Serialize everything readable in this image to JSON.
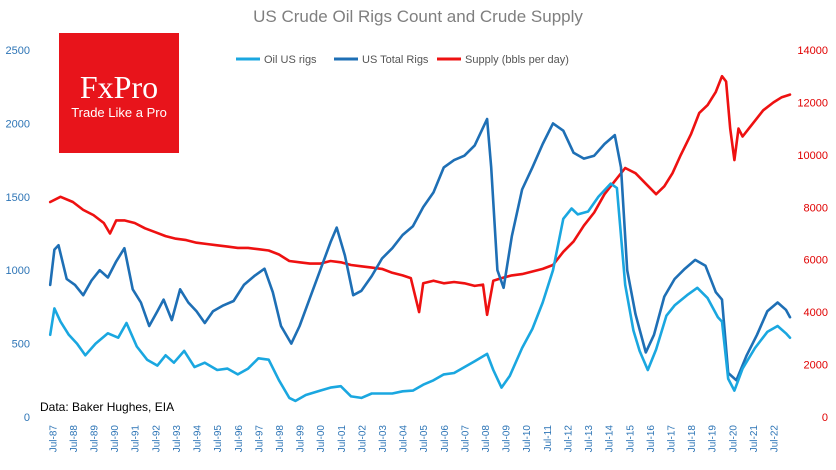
{
  "colors": {
    "oil_rigs": "#1aa7e0",
    "total_rigs": "#1e6fb5",
    "supply": "#ee1111",
    "logo_bg": "#e8141b",
    "left_axis": "#2e75b6",
    "right_axis": "#e00000"
  },
  "logo": {
    "brand": "FxPro",
    "tagline": "Trade Like a Pro"
  },
  "chart_data": {
    "type": "line",
    "title": "US Crude Oil Rigs Count and Crude Supply",
    "source_note": "Data: Baker Hughes, EIA",
    "legend_position": "top-center",
    "x_labels": [
      "Jul-87",
      "Jul-88",
      "Jul-89",
      "Jul-90",
      "Jul-91",
      "Jul-92",
      "Jul-93",
      "Jul-94",
      "Jul-95",
      "Jul-96",
      "Jul-97",
      "Jul-98",
      "Jul-99",
      "Jul-00",
      "Jul-01",
      "Jul-02",
      "Jul-03",
      "Jul-04",
      "Jul-05",
      "Jul-06",
      "Jul-07",
      "Jul-08",
      "Jul-09",
      "Jul-10",
      "Jul-11",
      "Jul-12",
      "Jul-13",
      "Jul-14",
      "Jul-15",
      "Jul-16",
      "Jul-17",
      "Jul-18",
      "Jul-19",
      "Jul-20",
      "Jul-21",
      "Jul-22"
    ],
    "x_range": [
      1987.0,
      2023.3
    ],
    "y_left": {
      "range": [
        0,
        2500
      ],
      "ticks": [
        "0",
        "500",
        "1000",
        "1500",
        "2000",
        "2500"
      ]
    },
    "y_right": {
      "range": [
        0,
        14000
      ],
      "ticks": [
        "0",
        "2000",
        "4000",
        "6000",
        "8000",
        "10000",
        "12000",
        "14000"
      ]
    },
    "series": [
      {
        "name": "Oil US rigs",
        "axis": "left",
        "color_key": "oil_rigs",
        "points": [
          [
            1987.4,
            560
          ],
          [
            1987.6,
            740
          ],
          [
            1987.9,
            650
          ],
          [
            1988.3,
            560
          ],
          [
            1988.7,
            500
          ],
          [
            1989.1,
            420
          ],
          [
            1989.6,
            500
          ],
          [
            1990.2,
            570
          ],
          [
            1990.7,
            540
          ],
          [
            1991.1,
            640
          ],
          [
            1991.6,
            480
          ],
          [
            1992.1,
            390
          ],
          [
            1992.6,
            350
          ],
          [
            1993.0,
            420
          ],
          [
            1993.4,
            370
          ],
          [
            1993.9,
            450
          ],
          [
            1994.4,
            340
          ],
          [
            1994.9,
            370
          ],
          [
            1995.5,
            320
          ],
          [
            1996.0,
            330
          ],
          [
            1996.5,
            290
          ],
          [
            1997.0,
            330
          ],
          [
            1997.5,
            400
          ],
          [
            1998.0,
            390
          ],
          [
            1998.5,
            250
          ],
          [
            1999.0,
            130
          ],
          [
            1999.3,
            110
          ],
          [
            1999.8,
            150
          ],
          [
            2000.5,
            180
          ],
          [
            2001.0,
            200
          ],
          [
            2001.5,
            210
          ],
          [
            2002.0,
            140
          ],
          [
            2002.5,
            130
          ],
          [
            2003.0,
            160
          ],
          [
            2003.5,
            160
          ],
          [
            2004.0,
            160
          ],
          [
            2004.5,
            175
          ],
          [
            2005.0,
            180
          ],
          [
            2005.5,
            220
          ],
          [
            2006.0,
            250
          ],
          [
            2006.5,
            290
          ],
          [
            2007.0,
            300
          ],
          [
            2007.5,
            340
          ],
          [
            2008.0,
            380
          ],
          [
            2008.6,
            430
          ],
          [
            2008.9,
            320
          ],
          [
            2009.3,
            200
          ],
          [
            2009.7,
            280
          ],
          [
            2010.3,
            470
          ],
          [
            2010.8,
            600
          ],
          [
            2011.3,
            780
          ],
          [
            2011.8,
            1000
          ],
          [
            2012.3,
            1350
          ],
          [
            2012.7,
            1420
          ],
          [
            2013.0,
            1380
          ],
          [
            2013.5,
            1400
          ],
          [
            2014.0,
            1500
          ],
          [
            2014.6,
            1590
          ],
          [
            2014.9,
            1560
          ],
          [
            2015.3,
            900
          ],
          [
            2015.7,
            590
          ],
          [
            2016.0,
            450
          ],
          [
            2016.4,
            320
          ],
          [
            2016.8,
            460
          ],
          [
            2017.3,
            690
          ],
          [
            2017.7,
            760
          ],
          [
            2018.3,
            830
          ],
          [
            2018.8,
            880
          ],
          [
            2019.3,
            810
          ],
          [
            2019.8,
            680
          ],
          [
            2020.0,
            650
          ],
          [
            2020.3,
            260
          ],
          [
            2020.6,
            180
          ],
          [
            2021.0,
            330
          ],
          [
            2021.6,
            470
          ],
          [
            2022.2,
            580
          ],
          [
            2022.7,
            620
          ],
          [
            2023.1,
            570
          ],
          [
            2023.3,
            540
          ]
        ]
      },
      {
        "name": "US Total Rigs",
        "axis": "left",
        "color_key": "total_rigs",
        "points": [
          [
            1987.4,
            900
          ],
          [
            1987.6,
            1140
          ],
          [
            1987.8,
            1170
          ],
          [
            1988.2,
            940
          ],
          [
            1988.6,
            900
          ],
          [
            1989.0,
            830
          ],
          [
            1989.4,
            930
          ],
          [
            1989.8,
            1000
          ],
          [
            1990.2,
            950
          ],
          [
            1990.6,
            1060
          ],
          [
            1991.0,
            1150
          ],
          [
            1991.4,
            870
          ],
          [
            1991.8,
            780
          ],
          [
            1992.2,
            620
          ],
          [
            1992.6,
            720
          ],
          [
            1992.9,
            800
          ],
          [
            1993.3,
            660
          ],
          [
            1993.7,
            870
          ],
          [
            1994.1,
            780
          ],
          [
            1994.5,
            720
          ],
          [
            1994.9,
            640
          ],
          [
            1995.3,
            720
          ],
          [
            1995.8,
            760
          ],
          [
            1996.3,
            790
          ],
          [
            1996.8,
            900
          ],
          [
            1997.3,
            960
          ],
          [
            1997.8,
            1010
          ],
          [
            1998.2,
            850
          ],
          [
            1998.6,
            620
          ],
          [
            1999.1,
            500
          ],
          [
            1999.5,
            620
          ],
          [
            2000.0,
            810
          ],
          [
            2000.5,
            1000
          ],
          [
            2001.0,
            1190
          ],
          [
            2001.3,
            1290
          ],
          [
            2001.7,
            1100
          ],
          [
            2002.1,
            830
          ],
          [
            2002.5,
            860
          ],
          [
            2003.0,
            960
          ],
          [
            2003.5,
            1080
          ],
          [
            2004.0,
            1150
          ],
          [
            2004.5,
            1240
          ],
          [
            2005.0,
            1300
          ],
          [
            2005.5,
            1430
          ],
          [
            2006.0,
            1530
          ],
          [
            2006.5,
            1700
          ],
          [
            2007.0,
            1750
          ],
          [
            2007.5,
            1780
          ],
          [
            2008.0,
            1850
          ],
          [
            2008.6,
            2030
          ],
          [
            2008.8,
            1700
          ],
          [
            2009.1,
            1000
          ],
          [
            2009.4,
            880
          ],
          [
            2009.8,
            1230
          ],
          [
            2010.3,
            1550
          ],
          [
            2010.8,
            1700
          ],
          [
            2011.3,
            1860
          ],
          [
            2011.8,
            2000
          ],
          [
            2012.3,
            1950
          ],
          [
            2012.8,
            1800
          ],
          [
            2013.3,
            1760
          ],
          [
            2013.8,
            1780
          ],
          [
            2014.3,
            1860
          ],
          [
            2014.8,
            1920
          ],
          [
            2015.1,
            1700
          ],
          [
            2015.4,
            1000
          ],
          [
            2015.8,
            700
          ],
          [
            2016.3,
            440
          ],
          [
            2016.7,
            560
          ],
          [
            2017.2,
            820
          ],
          [
            2017.7,
            940
          ],
          [
            2018.2,
            1010
          ],
          [
            2018.7,
            1070
          ],
          [
            2019.2,
            1030
          ],
          [
            2019.7,
            850
          ],
          [
            2020.0,
            800
          ],
          [
            2020.3,
            300
          ],
          [
            2020.7,
            250
          ],
          [
            2021.2,
            420
          ],
          [
            2021.7,
            560
          ],
          [
            2022.2,
            720
          ],
          [
            2022.7,
            780
          ],
          [
            2023.1,
            730
          ],
          [
            2023.3,
            680
          ]
        ]
      },
      {
        "name": "Supply (bbls per day)",
        "axis": "right",
        "color_key": "supply",
        "points": [
          [
            1987.4,
            8200
          ],
          [
            1987.9,
            8400
          ],
          [
            1988.5,
            8200
          ],
          [
            1989.0,
            7900
          ],
          [
            1989.5,
            7700
          ],
          [
            1990.0,
            7400
          ],
          [
            1990.3,
            7000
          ],
          [
            1990.6,
            7500
          ],
          [
            1991.0,
            7500
          ],
          [
            1991.5,
            7400
          ],
          [
            1992.0,
            7200
          ],
          [
            1992.5,
            7050
          ],
          [
            1993.0,
            6900
          ],
          [
            1993.5,
            6800
          ],
          [
            1994.0,
            6750
          ],
          [
            1994.5,
            6650
          ],
          [
            1995.0,
            6600
          ],
          [
            1995.5,
            6550
          ],
          [
            1996.0,
            6500
          ],
          [
            1996.5,
            6450
          ],
          [
            1997.0,
            6450
          ],
          [
            1997.5,
            6400
          ],
          [
            1998.0,
            6350
          ],
          [
            1998.5,
            6200
          ],
          [
            1999.0,
            5950
          ],
          [
            1999.5,
            5900
          ],
          [
            2000.0,
            5850
          ],
          [
            2000.5,
            5850
          ],
          [
            2001.0,
            5950
          ],
          [
            2001.5,
            5900
          ],
          [
            2002.0,
            5800
          ],
          [
            2002.5,
            5750
          ],
          [
            2003.0,
            5700
          ],
          [
            2003.5,
            5650
          ],
          [
            2004.0,
            5500
          ],
          [
            2004.5,
            5400
          ],
          [
            2004.9,
            5300
          ],
          [
            2005.3,
            4000
          ],
          [
            2005.5,
            5100
          ],
          [
            2006.0,
            5200
          ],
          [
            2006.5,
            5100
          ],
          [
            2007.0,
            5150
          ],
          [
            2007.5,
            5100
          ],
          [
            2008.0,
            5000
          ],
          [
            2008.4,
            5050
          ],
          [
            2008.6,
            3900
          ],
          [
            2008.9,
            5200
          ],
          [
            2009.3,
            5300
          ],
          [
            2009.8,
            5400
          ],
          [
            2010.3,
            5450
          ],
          [
            2010.8,
            5550
          ],
          [
            2011.3,
            5650
          ],
          [
            2011.8,
            5800
          ],
          [
            2012.3,
            6300
          ],
          [
            2012.8,
            6700
          ],
          [
            2013.3,
            7300
          ],
          [
            2013.8,
            7800
          ],
          [
            2014.3,
            8500
          ],
          [
            2014.8,
            9000
          ],
          [
            2015.3,
            9500
          ],
          [
            2015.8,
            9300
          ],
          [
            2016.3,
            8900
          ],
          [
            2016.8,
            8500
          ],
          [
            2017.2,
            8800
          ],
          [
            2017.6,
            9300
          ],
          [
            2018.0,
            10000
          ],
          [
            2018.5,
            10800
          ],
          [
            2018.9,
            11600
          ],
          [
            2019.3,
            11900
          ],
          [
            2019.7,
            12400
          ],
          [
            2020.0,
            13000
          ],
          [
            2020.2,
            12800
          ],
          [
            2020.4,
            11000
          ],
          [
            2020.6,
            9800
          ],
          [
            2020.8,
            11000
          ],
          [
            2021.0,
            10700
          ],
          [
            2021.3,
            11000
          ],
          [
            2021.7,
            11400
          ],
          [
            2022.0,
            11700
          ],
          [
            2022.5,
            12000
          ],
          [
            2022.9,
            12200
          ],
          [
            2023.3,
            12300
          ]
        ]
      }
    ]
  }
}
